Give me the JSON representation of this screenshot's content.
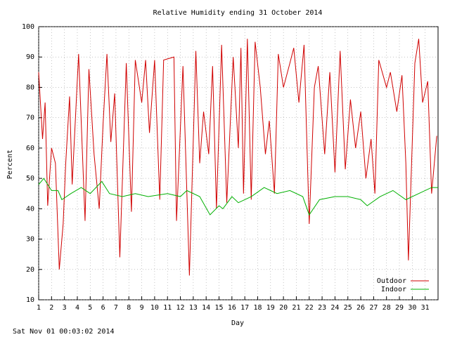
{
  "chart_data": {
    "type": "line",
    "title": "Relative Humidity ending 31 October 2014",
    "x_label": "Day",
    "y_label": "Percent",
    "footer": "Sat Nov 01 00:03:02 2014",
    "xlim": [
      1,
      32
    ],
    "ylim": [
      10,
      100
    ],
    "xticks": [
      1,
      2,
      3,
      4,
      5,
      6,
      7,
      8,
      9,
      10,
      11,
      12,
      13,
      14,
      15,
      16,
      17,
      18,
      19,
      20,
      21,
      22,
      23,
      24,
      25,
      26,
      27,
      28,
      29,
      30,
      31
    ],
    "yticks": [
      10,
      20,
      30,
      40,
      50,
      60,
      70,
      80,
      90,
      100
    ],
    "grid": true,
    "legend": "bottom-right",
    "series": [
      {
        "name": "Outdoor",
        "color": "#d00000",
        "x": [
          1,
          1.3,
          1.5,
          1.7,
          2,
          2.3,
          2.6,
          2.9,
          3.1,
          3.4,
          3.6,
          4.1,
          4.6,
          4.9,
          5.3,
          5.7,
          6,
          6.3,
          6.6,
          6.9,
          7.3,
          7.8,
          8.2,
          8.5,
          9,
          9.3,
          9.6,
          10,
          10.4,
          10.7,
          11.5,
          11.7,
          12.2,
          12.7,
          13.2,
          13.5,
          13.8,
          14.2,
          14.5,
          14.8,
          15.2,
          15.6,
          16.1,
          16.5,
          16.7,
          16.9,
          17.2,
          17.5,
          17.8,
          18.2,
          18.6,
          18.9,
          19.3,
          19.6,
          20,
          20.5,
          20.8,
          21.2,
          21.6,
          22,
          22.4,
          22.7,
          23.2,
          23.6,
          24,
          24.4,
          24.8,
          25.2,
          25.6,
          26,
          26.4,
          26.8,
          27.1,
          27.4,
          28,
          28.3,
          28.8,
          29.2,
          29.5,
          29.7,
          30.2,
          30.5,
          30.8,
          31.2,
          31.5,
          31.9
        ],
        "values": [
          85,
          63,
          75,
          41,
          60,
          55,
          20,
          35,
          55,
          77,
          48,
          91,
          36,
          86,
          58,
          40,
          68,
          91,
          62,
          78,
          24,
          88,
          39,
          89,
          75,
          89,
          65,
          89,
          43,
          89,
          90,
          36,
          87,
          18,
          92,
          55,
          72,
          58,
          87,
          40,
          94,
          42,
          90,
          60,
          93,
          45,
          96,
          43,
          95,
          80,
          58,
          69,
          45,
          91,
          80,
          88,
          93,
          75,
          94,
          35,
          80,
          87,
          58,
          85,
          52,
          92,
          53,
          76,
          60,
          72,
          50,
          63,
          45,
          89,
          80,
          85,
          72,
          84,
          55,
          23,
          88,
          96,
          75,
          82,
          45,
          64
        ]
      },
      {
        "name": "Indoor",
        "color": "#00b000",
        "x": [
          1,
          1.4,
          2,
          2.5,
          2.8,
          3.5,
          4.3,
          5,
          5.9,
          6.5,
          7.5,
          8.5,
          9.5,
          11,
          12,
          12.5,
          13.5,
          14.3,
          15,
          15.3,
          16,
          16.5,
          17.5,
          18.5,
          19.5,
          20.5,
          21.5,
          22,
          22.8,
          24,
          25,
          26,
          26.5,
          27.5,
          28.5,
          29.5,
          30.5,
          31.5,
          32
        ],
        "values": [
          48,
          50,
          46,
          46,
          43,
          45,
          47,
          45,
          49,
          45,
          44,
          45,
          44,
          45,
          44,
          46,
          44,
          38,
          41,
          40,
          44,
          42,
          44,
          47,
          45,
          46,
          44,
          38,
          43,
          44,
          44,
          43,
          41,
          44,
          46,
          43,
          45,
          47,
          47
        ]
      }
    ]
  }
}
